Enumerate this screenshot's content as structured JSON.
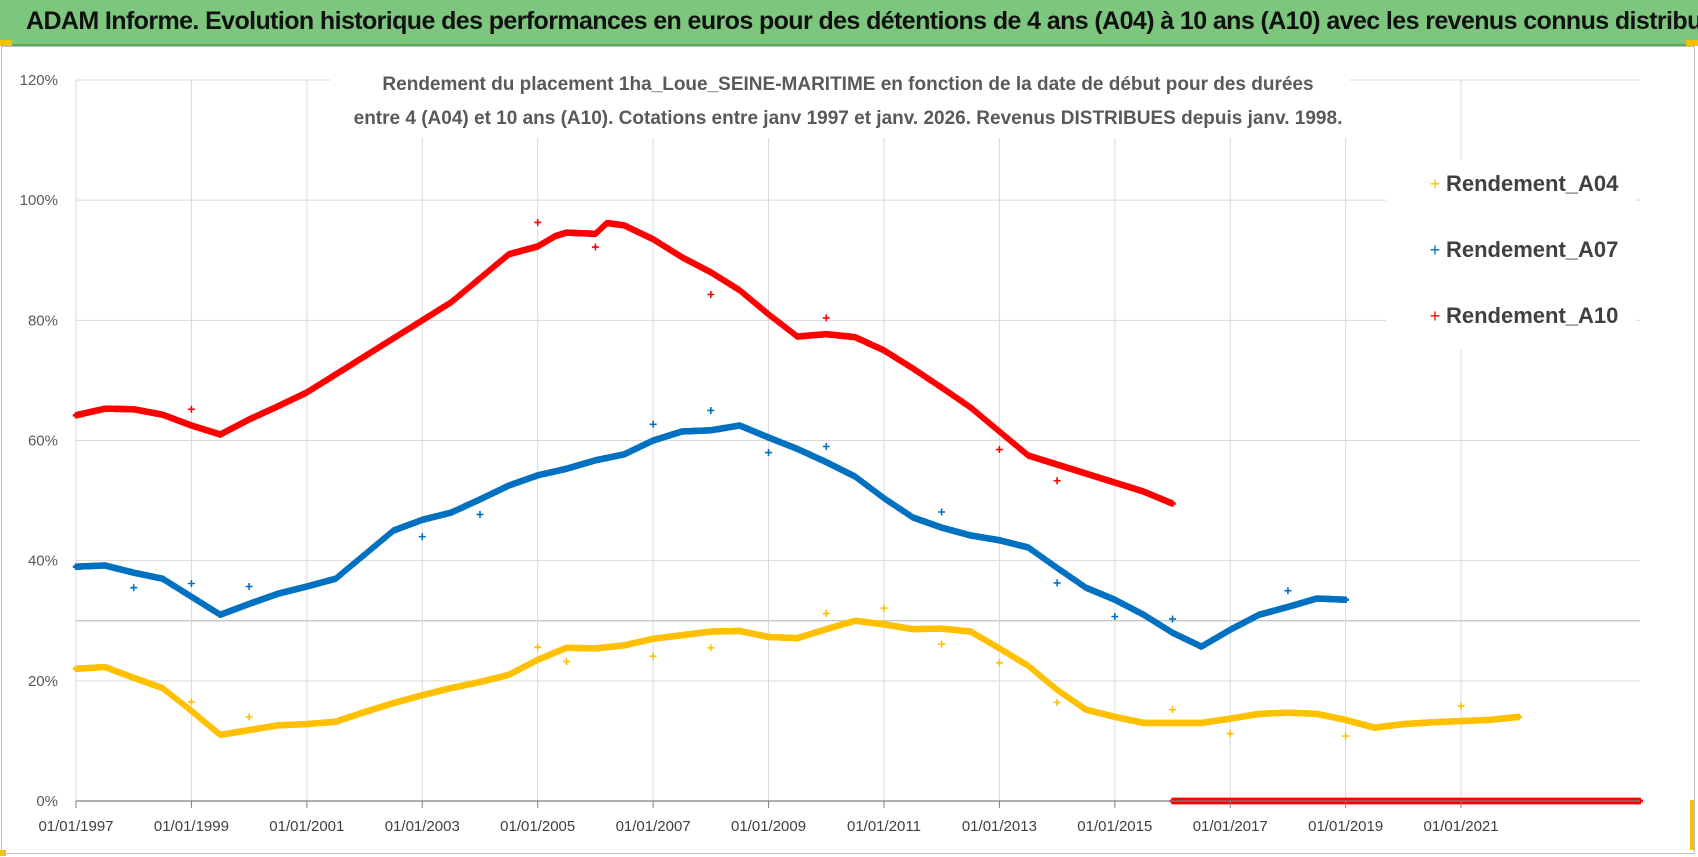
{
  "header": {
    "title": "ADAM Informe. Evolution historique des performances en euros pour des détentions de 4 ans (A04) à 10 ans (A10) avec les revenus connus distribués"
  },
  "chart_data": {
    "type": "scatter",
    "title_line1": "Rendement du placement 1ha_Loue_SEINE-MARITIME  en fonction de la date de début pour des durées",
    "title_line2": "entre 4 (A04) et 10 ans (A10).  Cotations entre janv 1997 et janv. 2026. Revenus DISTRIBUES depuis janv. 1998.",
    "xlabel": "",
    "ylabel": "",
    "xlim": [
      1997.0,
      2024.1
    ],
    "ylim": [
      0,
      120
    ],
    "y_ticks": [
      "0%",
      "20%",
      "40%",
      "60%",
      "80%",
      "100%",
      "120%"
    ],
    "y_tick_values": [
      0,
      20,
      40,
      60,
      80,
      100,
      120
    ],
    "x_ticks": [
      "01/01/1997",
      "01/01/1999",
      "01/01/2001",
      "01/01/2003",
      "01/01/2005",
      "01/01/2007",
      "01/01/2009",
      "01/01/2011",
      "01/01/2013",
      "01/01/2015",
      "01/01/2017",
      "01/01/2019",
      "01/01/2021"
    ],
    "x_tick_values": [
      1997,
      1999,
      2001,
      2003,
      2005,
      2007,
      2009,
      2011,
      2013,
      2015,
      2017,
      2019,
      2021
    ],
    "grid": true,
    "legend_position": "top-right",
    "colors": {
      "A04": "#ffc000",
      "A07": "#0070c0",
      "A10": "#ff0000",
      "grid": "#d9d9d9"
    },
    "series": [
      {
        "name": "Rendement_A04",
        "color": "#ffc000",
        "points": [
          [
            1997.0,
            22
          ],
          [
            1997.5,
            22.3
          ],
          [
            1998.0,
            20.5
          ],
          [
            1998.5,
            18.8
          ],
          [
            1999.0,
            15
          ],
          [
            1999.5,
            11
          ],
          [
            2000.0,
            11.8
          ],
          [
            2000.5,
            12.6
          ],
          [
            2001.0,
            12.8
          ],
          [
            2001.5,
            13.2
          ],
          [
            2002.0,
            14.8
          ],
          [
            2002.5,
            16.3
          ],
          [
            2003.0,
            17.6
          ],
          [
            2003.5,
            18.8
          ],
          [
            2004.0,
            19.8
          ],
          [
            2004.5,
            21
          ],
          [
            2005.0,
            23.5
          ],
          [
            2005.5,
            25.5
          ],
          [
            2006.0,
            25.4
          ],
          [
            2006.5,
            25.9
          ],
          [
            2007.0,
            27
          ],
          [
            2007.5,
            27.6
          ],
          [
            2008.0,
            28.2
          ],
          [
            2008.5,
            28.3
          ],
          [
            2009.0,
            27.3
          ],
          [
            2009.5,
            27.1
          ],
          [
            2010.0,
            28.6
          ],
          [
            2010.5,
            30
          ],
          [
            2011.0,
            29.4
          ],
          [
            2011.5,
            28.6
          ],
          [
            2012.0,
            28.7
          ],
          [
            2012.5,
            28.2
          ],
          [
            2013.0,
            25.4
          ],
          [
            2013.5,
            22.5
          ],
          [
            2014.0,
            18.5
          ],
          [
            2014.5,
            15.2
          ],
          [
            2015.0,
            14
          ],
          [
            2015.5,
            13
          ],
          [
            2016.0,
            13
          ],
          [
            2016.5,
            13
          ],
          [
            2017.0,
            13.7
          ],
          [
            2017.5,
            14.5
          ],
          [
            2018.0,
            14.7
          ],
          [
            2018.5,
            14.5
          ],
          [
            2019.0,
            13.5
          ],
          [
            2019.5,
            12.2
          ],
          [
            2020.0,
            12.8
          ],
          [
            2020.5,
            13.1
          ],
          [
            2021.0,
            13.3
          ],
          [
            2021.5,
            13.5
          ],
          [
            2022.0,
            14
          ]
        ],
        "outliers": [
          [
            1999.0,
            16.5
          ],
          [
            2000.0,
            14
          ],
          [
            2005.0,
            25.6
          ],
          [
            2005.5,
            23.2
          ],
          [
            2007.0,
            24.1
          ],
          [
            2008.0,
            25.5
          ],
          [
            2010.0,
            31.2
          ],
          [
            2011.0,
            32.1
          ],
          [
            2012.0,
            26.1
          ],
          [
            2013.0,
            23
          ],
          [
            2014.0,
            16.4
          ],
          [
            2016.0,
            15.2
          ],
          [
            2017.0,
            11.2
          ],
          [
            2019.0,
            10.8
          ],
          [
            2021.0,
            15.8
          ]
        ]
      },
      {
        "name": "Rendement_A07",
        "color": "#0070c0",
        "points": [
          [
            1997.0,
            39
          ],
          [
            1997.5,
            39.2
          ],
          [
            1998.0,
            38
          ],
          [
            1998.5,
            37
          ],
          [
            1999.0,
            34
          ],
          [
            1999.5,
            31
          ],
          [
            2000.0,
            32.8
          ],
          [
            2000.5,
            34.5
          ],
          [
            2001.0,
            35.7
          ],
          [
            2001.5,
            37
          ],
          [
            2002.0,
            41
          ],
          [
            2002.5,
            45
          ],
          [
            2003.0,
            46.8
          ],
          [
            2003.5,
            48
          ],
          [
            2004.0,
            50.2
          ],
          [
            2004.5,
            52.5
          ],
          [
            2005.0,
            54.2
          ],
          [
            2005.5,
            55.3
          ],
          [
            2006.0,
            56.7
          ],
          [
            2006.5,
            57.7
          ],
          [
            2007.0,
            60
          ],
          [
            2007.5,
            61.5
          ],
          [
            2008.0,
            61.7
          ],
          [
            2008.5,
            62.5
          ],
          [
            2009.0,
            60.5
          ],
          [
            2009.5,
            58.6
          ],
          [
            2010.0,
            56.4
          ],
          [
            2010.5,
            54
          ],
          [
            2011.0,
            50.4
          ],
          [
            2011.5,
            47.2
          ],
          [
            2012.0,
            45.5
          ],
          [
            2012.5,
            44.2
          ],
          [
            2013.0,
            43.4
          ],
          [
            2013.5,
            42.2
          ],
          [
            2014.0,
            38.8
          ],
          [
            2014.5,
            35.5
          ],
          [
            2015.0,
            33.5
          ],
          [
            2015.5,
            31
          ],
          [
            2016.0,
            28
          ],
          [
            2016.5,
            25.7
          ],
          [
            2017.0,
            28.5
          ],
          [
            2017.5,
            31
          ],
          [
            2018.0,
            32.3
          ],
          [
            2018.5,
            33.7
          ],
          [
            2019.0,
            33.5
          ]
        ],
        "outliers": [
          [
            1998.0,
            35.5
          ],
          [
            1999.0,
            36.2
          ],
          [
            2000.0,
            35.7
          ],
          [
            2003.0,
            44
          ],
          [
            2004.0,
            47.7
          ],
          [
            2007.0,
            62.7
          ],
          [
            2008.0,
            65
          ],
          [
            2009.0,
            58
          ],
          [
            2010.0,
            59
          ],
          [
            2012.0,
            48.1
          ],
          [
            2014.0,
            36.3
          ],
          [
            2015.0,
            30.7
          ],
          [
            2016.0,
            30.3
          ],
          [
            2018.0,
            35
          ]
        ]
      },
      {
        "name": "Rendement_A10",
        "color": "#ff0000",
        "points": [
          [
            1997.0,
            64.2
          ],
          [
            1997.5,
            65.3
          ],
          [
            1998.0,
            65.2
          ],
          [
            1998.5,
            64.3
          ],
          [
            1999.0,
            62.5
          ],
          [
            1999.5,
            61
          ],
          [
            2000.0,
            63.5
          ],
          [
            2000.5,
            65.7
          ],
          [
            2001.0,
            68
          ],
          [
            2001.5,
            71
          ],
          [
            2002.0,
            74
          ],
          [
            2002.5,
            77
          ],
          [
            2003.0,
            80
          ],
          [
            2003.5,
            83
          ],
          [
            2004.0,
            87
          ],
          [
            2004.5,
            91
          ],
          [
            2005.0,
            92.3
          ],
          [
            2005.3,
            94
          ],
          [
            2005.5,
            94.6
          ],
          [
            2006.0,
            94.4
          ],
          [
            2006.2,
            96.2
          ],
          [
            2006.5,
            95.8
          ],
          [
            2007.0,
            93.5
          ],
          [
            2007.5,
            90.5
          ],
          [
            2008.0,
            88
          ],
          [
            2008.5,
            85
          ],
          [
            2009.0,
            81
          ],
          [
            2009.5,
            77.3
          ],
          [
            2010.0,
            77.7
          ],
          [
            2010.5,
            77.2
          ],
          [
            2011.0,
            75
          ],
          [
            2011.5,
            72
          ],
          [
            2012.0,
            68.8
          ],
          [
            2012.5,
            65.5
          ],
          [
            2013.0,
            61.5
          ],
          [
            2013.5,
            57.5
          ],
          [
            2014.0,
            56
          ],
          [
            2014.5,
            54.5
          ],
          [
            2015.0,
            53
          ],
          [
            2015.5,
            51.5
          ],
          [
            2016.0,
            49.5
          ]
        ],
        "outliers": [
          [
            1999.0,
            65.2
          ],
          [
            2005.0,
            96.3
          ],
          [
            2006.0,
            92.2
          ],
          [
            2008.0,
            84.3
          ],
          [
            2010.0,
            80.4
          ],
          [
            2013.0,
            58.5
          ],
          [
            2014.0,
            53.3
          ]
        ],
        "zero_start": 2016.0,
        "zero_end": 2024.1
      }
    ]
  }
}
